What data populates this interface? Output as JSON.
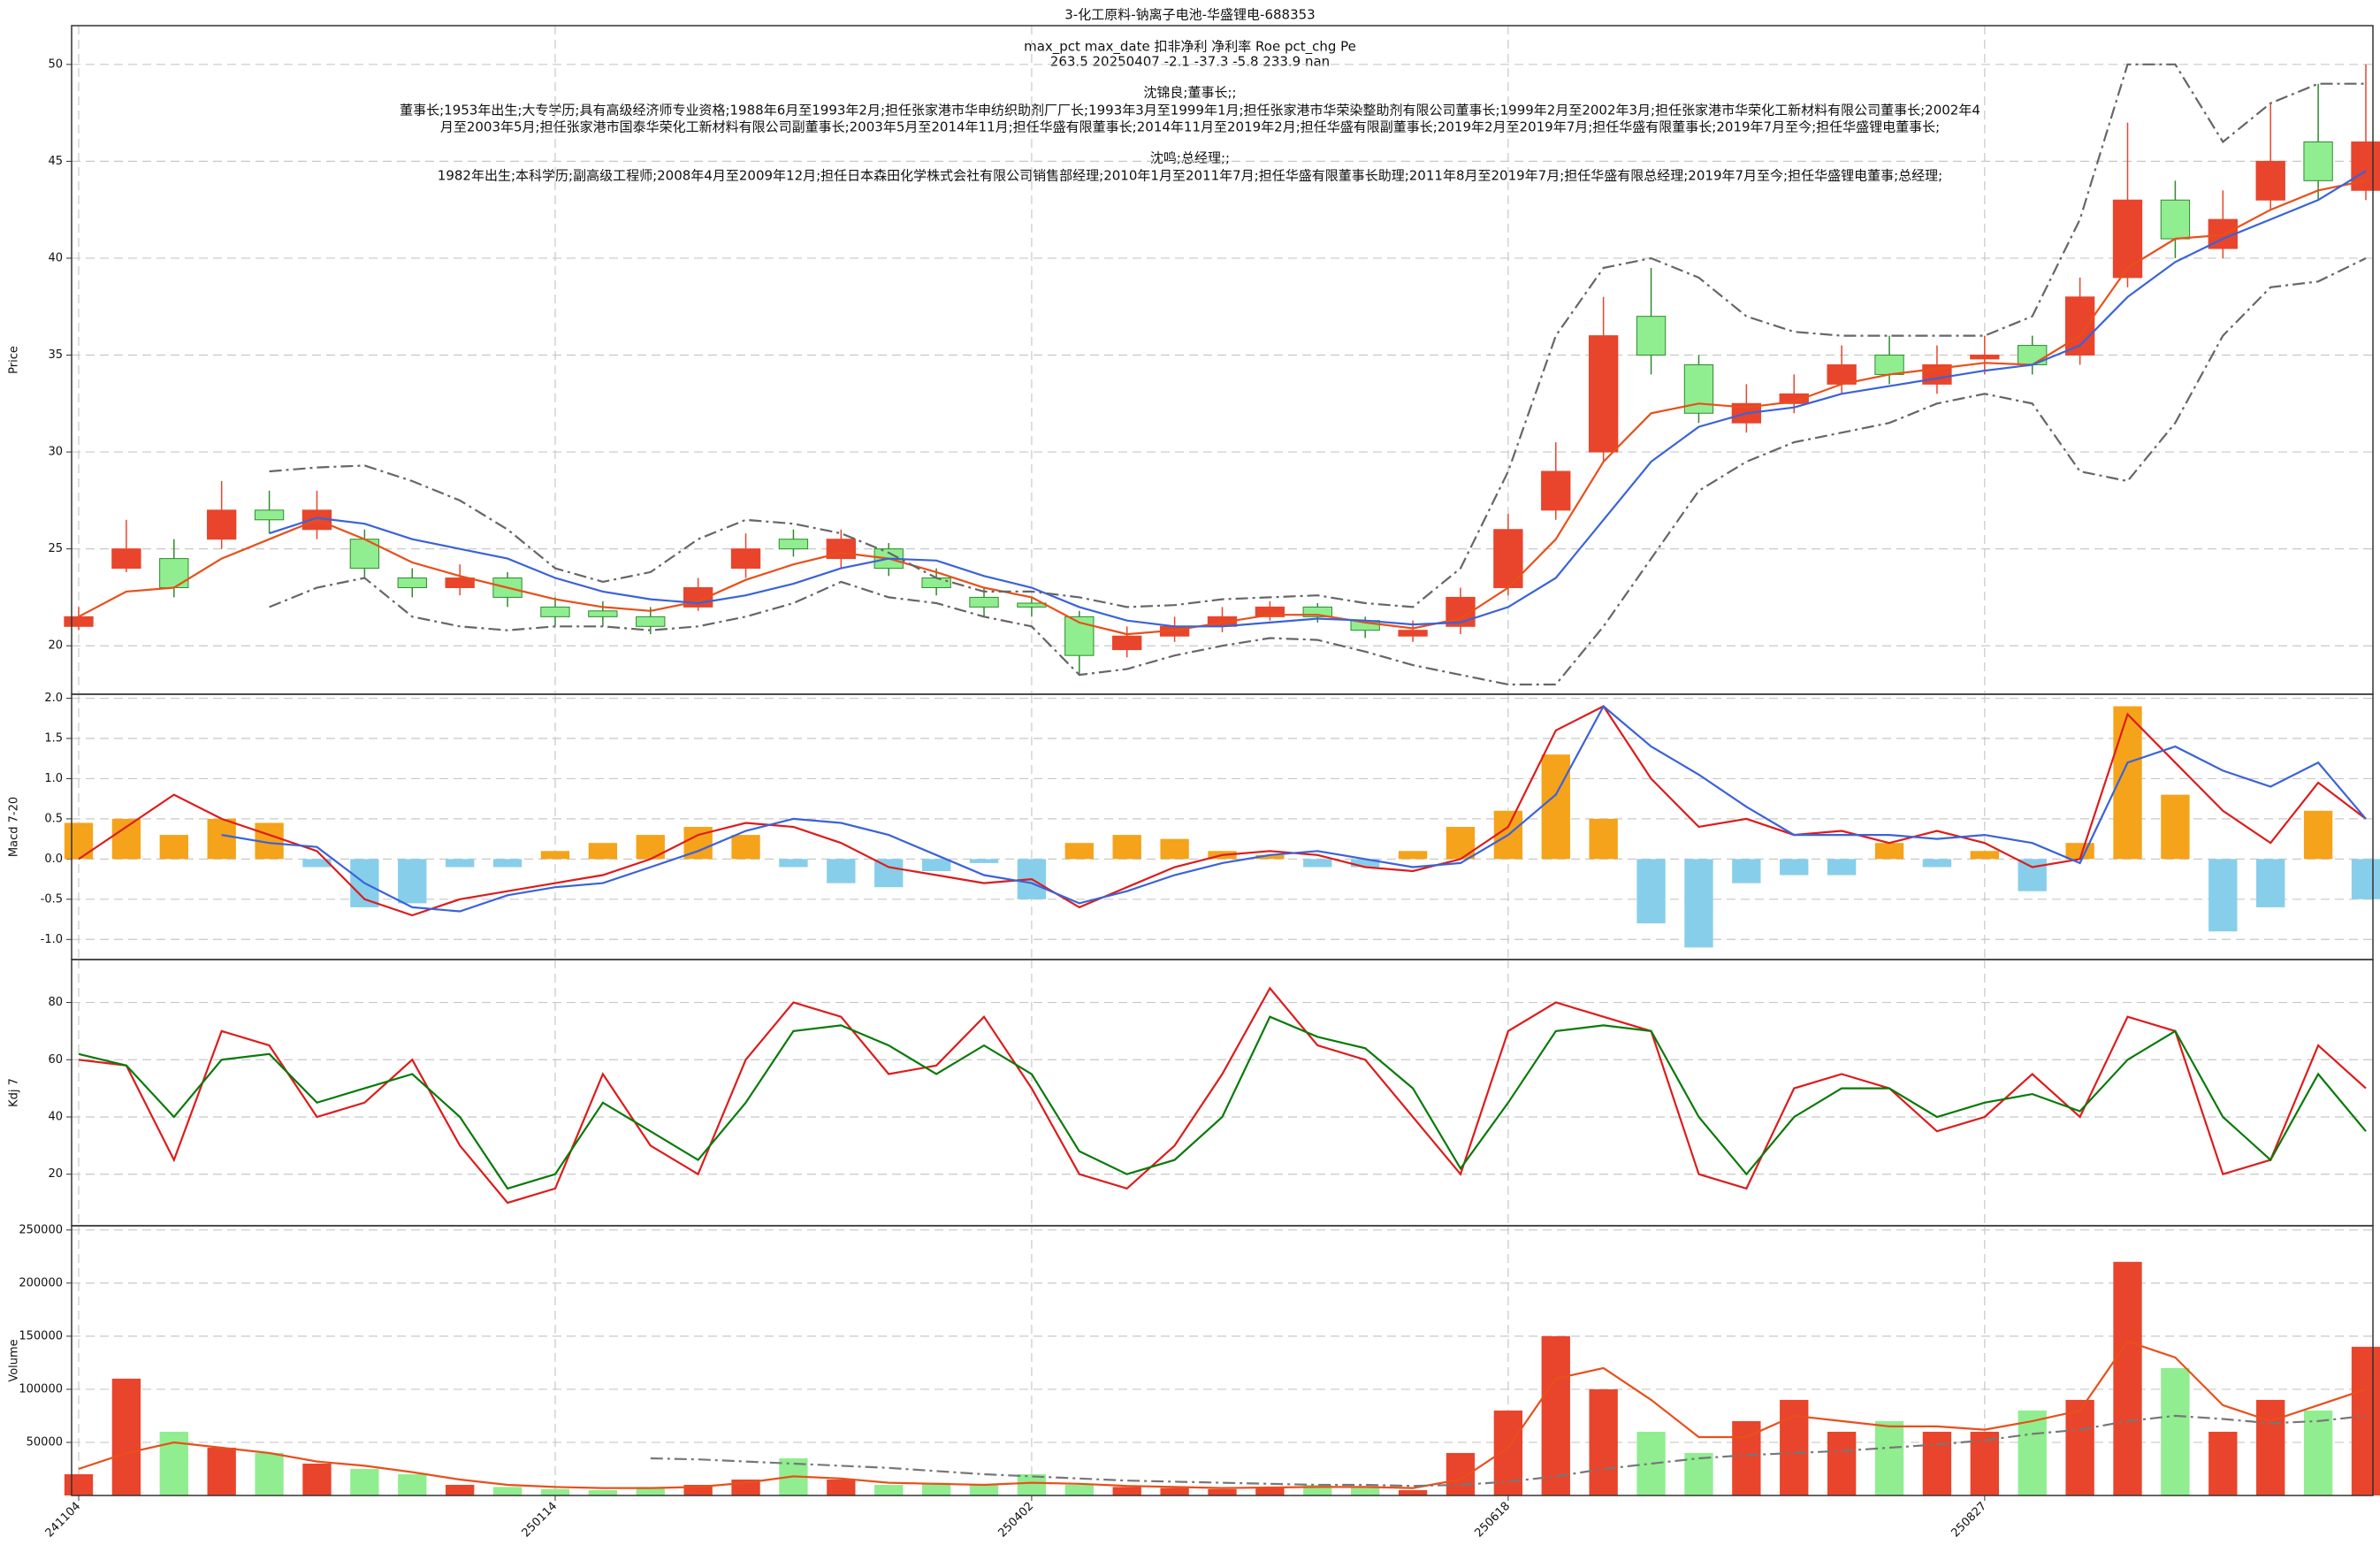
{
  "chart_data": [
    {
      "type": "candlestick",
      "title": "3-化工原料-钠离子电池-华盛锂电-688353",
      "annotations": [
        "max_pct  max_date  扣非净利  净利率  Roe  pct_chg  Pe",
        "263.5    20250407    -2.1    -37.3    -5.8    233.9    nan",
        "沈锦良;董事长;;",
        "董事长;1953年出生;大专学历;具有高级经济师专业资格;1988年6月至1993年2月;担任张家港市华申纺织助剂厂厂长;1993年3月至1999年1月;担任张家港市华荣染整助剂有限公司董事长;1999年2月至2002年3月;担任张家港市华荣化工新材料有限公司董事长;2002年4",
        "月至2003年5月;担任张家港市国泰华荣化工新材料有限公司副董事长;2003年5月至2014年11月;担任华盛有限董事长;2014年11月至2019年2月;担任华盛有限副董事长;2019年2月至2019年7月;担任华盛有限董事长;2019年7月至今;担任华盛锂电董事长;",
        "沈鸣;总经理;;",
        "1982年出生;本科学历;副高级工程师;2008年4月至2009年12月;担任日本森田化学株式会社有限公司销售部经理;2010年1月至2011年7月;担任华盛有限董事长助理;2011年8月至2019年7月;担任华盛有限总经理;2019年7月至今;担任华盛锂电董事;总经理;"
      ],
      "ylabel": "Price",
      "ylim": [
        17.5,
        52
      ],
      "yticks": [
        20,
        25,
        30,
        35,
        40,
        45,
        50
      ],
      "grid": true,
      "categories": [
        "241104",
        null,
        null,
        null,
        null,
        null,
        null,
        null,
        null,
        null,
        "250114",
        null,
        null,
        null,
        null,
        null,
        null,
        null,
        null,
        null,
        "250402",
        null,
        null,
        null,
        null,
        null,
        null,
        null,
        null,
        null,
        "250618",
        null,
        null,
        null,
        null,
        null,
        null,
        null,
        null,
        null,
        "250827",
        null,
        null,
        null,
        null,
        null,
        null,
        null,
        null
      ],
      "up_color": "#e8452c",
      "down_color": "#90ee90",
      "down_edge": "#2e8b2e",
      "open": [
        21,
        24,
        24.5,
        25.5,
        27,
        26,
        25.5,
        23.5,
        23,
        23.5,
        22,
        21.8,
        21.5,
        22,
        24,
        25.5,
        24.5,
        25,
        23.5,
        22.5,
        22.2,
        21.5,
        19.8,
        20.5,
        21,
        21.5,
        22,
        21.3,
        20.5,
        21,
        23,
        27,
        30,
        37,
        34.5,
        31.5,
        32.5,
        33.5,
        35,
        33.5,
        34.8,
        35.5,
        35,
        39,
        43,
        40.5,
        43,
        46,
        43.5
      ],
      "high": [
        22,
        26.5,
        25.5,
        28.5,
        28,
        28,
        26,
        24,
        24.2,
        23.8,
        22.5,
        22.3,
        22,
        23.5,
        25.8,
        26,
        26,
        25.3,
        24,
        23,
        22.5,
        21.8,
        21,
        21.5,
        22,
        22.3,
        22.2,
        21.5,
        21.3,
        23,
        26.8,
        30.5,
        38,
        39.5,
        35,
        33.5,
        34,
        35.5,
        36,
        35.5,
        36,
        36,
        39,
        47,
        44,
        43.5,
        48,
        49,
        50
      ],
      "low": [
        20.8,
        23.8,
        22.5,
        25,
        25.8,
        25.5,
        23.5,
        22.5,
        22.6,
        22,
        21,
        21,
        20.6,
        21.8,
        23.5,
        24.6,
        24,
        23.6,
        22.6,
        21.5,
        21.5,
        18.5,
        19.4,
        20.2,
        20.7,
        21.3,
        21.2,
        20.4,
        20.2,
        20.6,
        22.6,
        26.5,
        29.5,
        34,
        31.5,
        31,
        32,
        33,
        33.5,
        33,
        34,
        34,
        34.5,
        38.5,
        40,
        40,
        42.5,
        43,
        43
      ],
      "close": [
        21.5,
        25,
        23,
        27,
        26.5,
        27,
        24,
        23,
        23.5,
        22.5,
        21.5,
        21.5,
        21,
        23,
        25,
        25,
        25.5,
        24,
        23,
        22,
        22,
        19.5,
        20.5,
        21,
        21.5,
        22,
        21.5,
        20.8,
        20.8,
        22.5,
        26,
        29,
        36,
        35,
        32,
        32.5,
        33,
        34.5,
        34,
        34.5,
        35,
        34.5,
        38,
        43,
        41,
        42,
        45,
        44,
        46
      ],
      "series": [
        {
          "color": "#e8501a",
          "values": [
            21.5,
            22.8,
            23,
            24.5,
            25.5,
            26.5,
            25.5,
            24.3,
            23.6,
            23,
            22.4,
            22,
            21.8,
            22.3,
            23.4,
            24.2,
            24.8,
            24.5,
            23.8,
            23,
            22.5,
            21.2,
            20.6,
            20.8,
            21.2,
            21.6,
            21.6,
            21.2,
            20.9,
            21.4,
            23,
            25.5,
            29.5,
            32,
            32.5,
            32.3,
            32.6,
            33.5,
            34,
            34.3,
            34.6,
            34.5,
            36,
            39.5,
            41,
            41.2,
            42.5,
            43.5,
            44
          ]
        },
        {
          "color": "#3a63d8",
          "values": [
            null,
            null,
            null,
            null,
            25.8,
            26.6,
            26.3,
            25.5,
            25,
            24.5,
            23.5,
            22.8,
            22.4,
            22.2,
            22.6,
            23.2,
            24,
            24.5,
            24.4,
            23.6,
            23,
            22,
            21.3,
            21,
            21,
            21.2,
            21.4,
            21.3,
            21.1,
            21.2,
            22,
            23.5,
            26.5,
            29.5,
            31.3,
            32,
            32.3,
            33,
            33.4,
            33.8,
            34.2,
            34.5,
            35.5,
            38,
            39.8,
            41,
            42,
            43,
            44.5
          ]
        },
        {
          "color": "#666666",
          "dash": "dashdot",
          "values": [
            null,
            null,
            null,
            null,
            29,
            29.2,
            29.3,
            28.5,
            27.5,
            26,
            24,
            23.3,
            23.8,
            25.5,
            26.5,
            26.3,
            25.8,
            24.8,
            23.5,
            22.8,
            22.8,
            22.5,
            22,
            22.1,
            22.4,
            22.5,
            22.6,
            22.2,
            22,
            24,
            29,
            36,
            39.5,
            40,
            39,
            37,
            36.2,
            36,
            36,
            36,
            36,
            37,
            42,
            50,
            50,
            46,
            48,
            49,
            49
          ]
        },
        {
          "color": "#666666",
          "dash": "dashdot",
          "values": [
            null,
            null,
            null,
            null,
            22,
            23,
            23.5,
            21.5,
            21,
            20.8,
            21,
            21,
            20.8,
            21,
            21.5,
            22.2,
            23.3,
            22.5,
            22.2,
            21.5,
            21,
            18.5,
            18.8,
            19.5,
            20,
            20.4,
            20.3,
            19.7,
            19,
            18.5,
            18,
            18,
            21,
            24.5,
            28,
            29.5,
            30.5,
            31,
            31.5,
            32.5,
            33,
            32.5,
            29,
            28.5,
            31.5,
            36,
            38.5,
            38.8,
            40
          ]
        }
      ]
    },
    {
      "type": "macd",
      "ylabel": "Macd 7-20",
      "ylim": [
        -1.25,
        2.05
      ],
      "grid": true,
      "yticks": [
        {
          "value": -1,
          "label": "-1.0"
        },
        -0.5,
        {
          "value": 0,
          "label": "0.0"
        },
        0.5,
        {
          "value": 1,
          "label": "1.0"
        },
        1.5,
        {
          "value": 2,
          "label": "2.0"
        }
      ],
      "pos_color": "#f5a31a",
      "neg_color": "#87ceeb",
      "values": [
        0.45,
        0.5,
        0.3,
        0.5,
        0.45,
        -0.1,
        -0.6,
        -0.55,
        -0.1,
        -0.1,
        0.1,
        0.2,
        0.3,
        0.4,
        0.3,
        -0.1,
        -0.3,
        -0.35,
        -0.15,
        -0.05,
        -0.5,
        0.2,
        0.3,
        0.25,
        0.1,
        0.05,
        -0.1,
        -0.1,
        0.1,
        0.4,
        0.6,
        1.3,
        0.5,
        -0.8,
        -1.1,
        -0.3,
        -0.2,
        -0.2,
        0.2,
        -0.1,
        0.1,
        -0.4,
        0.2,
        1.9,
        0.8,
        -0.9,
        -0.6,
        0.6,
        -0.5
      ],
      "series": [
        {
          "color": "#dd1c1c",
          "values": [
            0,
            0.4,
            0.8,
            0.5,
            0.3,
            0.1,
            -0.5,
            -0.7,
            -0.5,
            -0.4,
            -0.3,
            -0.2,
            0,
            0.3,
            0.45,
            0.4,
            0.2,
            -0.1,
            -0.2,
            -0.3,
            -0.25,
            -0.6,
            -0.35,
            -0.1,
            0.05,
            0.1,
            0.05,
            -0.1,
            -0.15,
            0,
            0.4,
            1.6,
            1.9,
            1.0,
            0.4,
            0.5,
            0.3,
            0.35,
            0.2,
            0.35,
            0.2,
            -0.1,
            0,
            1.8,
            1.2,
            0.6,
            0.2,
            0.95,
            0.5
          ]
        },
        {
          "color": "#3a63d8",
          "values": [
            null,
            null,
            null,
            0.3,
            0.2,
            0.15,
            -0.3,
            -0.6,
            -0.65,
            -0.45,
            -0.35,
            -0.3,
            -0.1,
            0.1,
            0.35,
            0.5,
            0.45,
            0.3,
            0.05,
            -0.2,
            -0.3,
            -0.55,
            -0.4,
            -0.2,
            -0.05,
            0.05,
            0.1,
            0,
            -0.1,
            -0.05,
            0.3,
            0.8,
            1.9,
            1.4,
            1.05,
            0.65,
            0.3,
            0.3,
            0.3,
            0.25,
            0.3,
            0.2,
            -0.05,
            1.2,
            1.4,
            1.1,
            0.9,
            1.2,
            0.5
          ]
        }
      ]
    },
    {
      "type": "kdj",
      "ylabel": "Kdj 7",
      "ylim": [
        2,
        95
      ],
      "yticks": [
        20,
        40,
        60,
        80
      ],
      "grid": true,
      "series": [
        {
          "color": "#dd1c1c",
          "values": [
            60,
            58,
            25,
            70,
            65,
            40,
            45,
            60,
            30,
            10,
            15,
            55,
            30,
            20,
            60,
            80,
            75,
            55,
            58,
            75,
            50,
            20,
            15,
            30,
            55,
            85,
            65,
            60,
            40,
            20,
            70,
            80,
            75,
            70,
            20,
            15,
            50,
            55,
            50,
            35,
            40,
            55,
            40,
            75,
            70,
            20,
            25,
            65,
            50
          ]
        },
        {
          "color": "#0a7a0a",
          "values": [
            62,
            58,
            40,
            60,
            62,
            45,
            50,
            55,
            40,
            15,
            20,
            45,
            35,
            25,
            45,
            70,
            72,
            65,
            55,
            65,
            55,
            28,
            20,
            25,
            40,
            75,
            68,
            64,
            50,
            22,
            45,
            70,
            72,
            70,
            40,
            20,
            40,
            50,
            50,
            40,
            45,
            48,
            42,
            60,
            70,
            40,
            25,
            55,
            35
          ]
        }
      ]
    },
    {
      "type": "volume",
      "ylabel": "Volume",
      "ylim": [
        0,
        254000
      ],
      "yticks": [
        50000,
        100000,
        150000,
        200000,
        250000
      ],
      "grid": true,
      "values": [
        20000,
        110000,
        60000,
        45000,
        40000,
        30000,
        25000,
        20000,
        10000,
        8000,
        6000,
        5000,
        8000,
        10000,
        15000,
        35000,
        15000,
        10000,
        12000,
        10000,
        20000,
        10000,
        8000,
        7000,
        6000,
        8000,
        10000,
        8000,
        5000,
        40000,
        80000,
        150000,
        100000,
        60000,
        40000,
        70000,
        90000,
        60000,
        70000,
        60000,
        60000,
        80000,
        90000,
        220000,
        120000,
        60000,
        90000,
        80000,
        140000
      ],
      "series": [
        {
          "color": "#e8501a",
          "values": [
            25000,
            40000,
            50000,
            45000,
            40000,
            32000,
            28000,
            22000,
            15000,
            10000,
            8000,
            7000,
            7000,
            8000,
            12000,
            18000,
            16000,
            12000,
            11000,
            10000,
            12000,
            11000,
            9000,
            8000,
            7000,
            7500,
            8000,
            8000,
            7000,
            15000,
            45000,
            110000,
            120000,
            90000,
            55000,
            55000,
            75000,
            70000,
            65000,
            65000,
            62000,
            70000,
            80000,
            145000,
            130000,
            85000,
            70000,
            85000,
            100000
          ]
        },
        {
          "color": "#777777",
          "dash": "dashdot",
          "values": [
            null,
            null,
            null,
            null,
            null,
            null,
            null,
            null,
            null,
            null,
            null,
            null,
            35000,
            34000,
            32000,
            30000,
            28000,
            26000,
            23000,
            20000,
            18000,
            16000,
            14000,
            13000,
            12000,
            11000,
            10000,
            10000,
            9000,
            10000,
            13000,
            18000,
            25000,
            30000,
            35000,
            38000,
            40000,
            42000,
            45000,
            48000,
            52000,
            58000,
            62000,
            70000,
            75000,
            72000,
            68000,
            70000,
            75000
          ]
        }
      ]
    }
  ]
}
